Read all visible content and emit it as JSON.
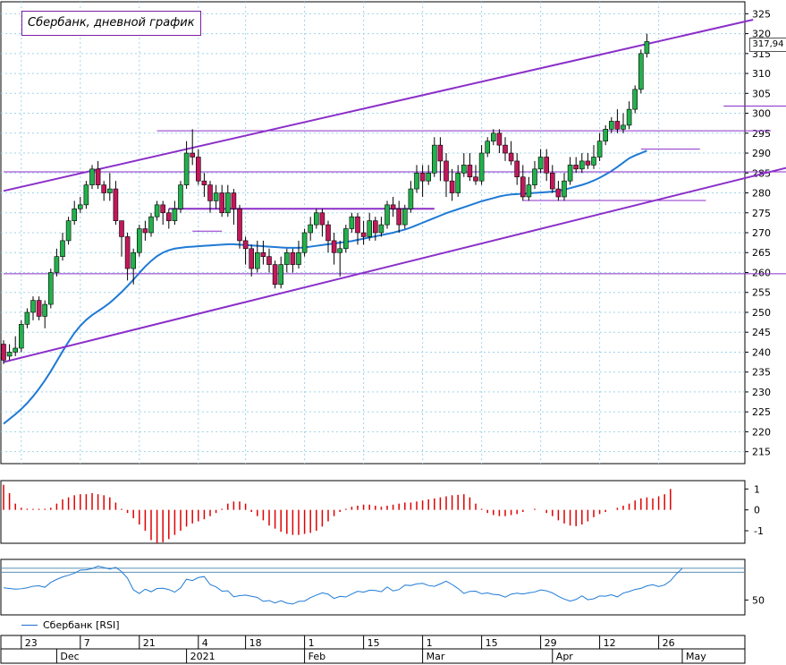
{
  "title": "Сбербанк, дневной график",
  "last_price_label": "317,94",
  "rsi_legend": "Сбербанк [RSI]",
  "colors": {
    "bull_candle": "#22b14c",
    "bear_candle": "#c2185b",
    "trendline": "#8b2fc9",
    "ma": "#1f7ad6",
    "hist": "#e00000",
    "rsi": "#1f7ad6",
    "grid": "#9fd3ea"
  },
  "chart_data": [
    {
      "type": "candlestick",
      "title": "Сбербанк, дневной график",
      "ylim": [
        212,
        328
      ],
      "y_ticks": [
        215,
        220,
        225,
        230,
        235,
        240,
        245,
        250,
        255,
        260,
        265,
        270,
        275,
        280,
        285,
        290,
        295,
        300,
        305,
        310,
        315,
        320,
        325
      ],
      "x_labels": [
        {
          "label": "23",
          "index": 3
        },
        {
          "label": "7",
          "index": 13
        },
        {
          "label": "21",
          "index": 23
        },
        {
          "label": "4",
          "index": 33
        },
        {
          "label": "18",
          "index": 41
        },
        {
          "label": "1",
          "index": 51
        },
        {
          "label": "15",
          "index": 61
        },
        {
          "label": "1",
          "index": 71
        },
        {
          "label": "15",
          "index": 81
        },
        {
          "label": "29",
          "index": 91
        },
        {
          "label": "12",
          "index": 101
        },
        {
          "label": "26",
          "index": 111
        }
      ],
      "month_labels": [
        {
          "label": "Dec",
          "index": 9
        },
        {
          "label": "2021",
          "index": 31
        },
        {
          "label": "Feb",
          "index": 51
        },
        {
          "label": "Mar",
          "index": 71
        },
        {
          "label": "Apr",
          "index": 93
        },
        {
          "label": "May",
          "index": 115
        }
      ],
      "candles": [
        [
          242,
          238,
          243,
          237
        ],
        [
          239,
          240,
          242,
          238
        ],
        [
          240,
          241,
          244,
          239
        ],
        [
          241,
          247,
          248,
          240
        ],
        [
          247,
          250,
          251,
          246
        ],
        [
          250,
          253,
          254,
          248
        ],
        [
          253,
          249,
          254,
          248
        ],
        [
          249,
          252,
          253,
          246
        ],
        [
          252,
          260,
          261,
          251
        ],
        [
          260,
          264,
          266,
          259
        ],
        [
          264,
          268,
          270,
          263
        ],
        [
          268,
          273,
          274,
          267
        ],
        [
          273,
          276,
          278,
          272
        ],
        [
          276,
          277,
          279,
          275
        ],
        [
          277,
          282,
          283,
          276
        ],
        [
          282,
          286,
          287,
          281
        ],
        [
          286,
          282,
          288,
          281
        ],
        [
          282,
          280,
          283,
          278
        ],
        [
          280,
          281,
          285,
          278
        ],
        [
          281,
          273,
          283,
          272
        ],
        [
          273,
          269,
          273,
          264
        ],
        [
          269,
          261,
          270,
          258
        ],
        [
          261,
          265,
          266,
          257
        ],
        [
          265,
          271,
          272,
          264
        ],
        [
          271,
          270,
          273,
          268
        ],
        [
          270,
          274,
          275,
          269
        ],
        [
          274,
          277,
          278,
          273
        ],
        [
          277,
          275,
          278,
          272
        ],
        [
          275,
          273,
          276,
          271
        ],
        [
          273,
          276,
          278,
          272
        ],
        [
          276,
          282,
          283,
          275
        ],
        [
          282,
          290,
          293,
          281
        ],
        [
          290,
          289,
          296,
          287
        ],
        [
          289,
          283,
          291,
          282
        ],
        [
          283,
          282,
          285,
          279
        ],
        [
          282,
          278,
          283,
          275
        ],
        [
          278,
          280,
          282,
          276
        ],
        [
          280,
          275,
          282,
          274
        ],
        [
          275,
          280,
          282,
          274
        ],
        [
          280,
          276,
          281,
          272
        ],
        [
          276,
          268,
          277,
          266
        ],
        [
          268,
          266,
          269,
          262
        ],
        [
          266,
          261,
          267,
          259
        ],
        [
          261,
          265,
          268,
          260
        ],
        [
          265,
          264,
          268,
          262
        ],
        [
          264,
          262,
          266,
          260
        ],
        [
          262,
          257,
          263,
          256
        ],
        [
          257,
          262,
          264,
          256
        ],
        [
          262,
          265,
          266,
          260
        ],
        [
          265,
          262,
          266,
          260
        ],
        [
          262,
          265,
          268,
          261
        ],
        [
          265,
          270,
          271,
          264
        ],
        [
          270,
          272,
          274,
          268
        ],
        [
          272,
          275,
          276,
          271
        ],
        [
          275,
          272,
          276,
          269
        ],
        [
          272,
          268,
          273,
          265
        ],
        [
          268,
          265,
          270,
          262
        ],
        [
          265,
          266,
          268,
          259
        ],
        [
          266,
          271,
          272,
          265
        ],
        [
          271,
          274,
          275,
          270
        ],
        [
          274,
          270,
          275,
          267
        ],
        [
          270,
          269,
          273,
          267
        ],
        [
          269,
          273,
          275,
          268
        ],
        [
          273,
          270,
          274,
          268
        ],
        [
          270,
          272,
          274,
          269
        ],
        [
          272,
          277,
          278,
          271
        ],
        [
          277,
          276,
          279,
          274
        ],
        [
          276,
          272,
          278,
          270
        ],
        [
          272,
          276,
          277,
          271
        ],
        [
          276,
          281,
          283,
          275
        ],
        [
          281,
          285,
          287,
          280
        ],
        [
          285,
          283,
          287,
          279
        ],
        [
          283,
          285,
          287,
          282
        ],
        [
          285,
          292,
          294,
          284
        ],
        [
          292,
          288,
          294,
          283
        ],
        [
          288,
          283,
          290,
          279
        ],
        [
          283,
          280,
          286,
          278
        ],
        [
          280,
          285,
          287,
          279
        ],
        [
          285,
          287,
          290,
          284
        ],
        [
          287,
          284,
          290,
          283
        ],
        [
          284,
          283,
          287,
          282
        ],
        [
          283,
          290,
          292,
          282
        ],
        [
          290,
          293,
          294,
          289
        ],
        [
          293,
          295,
          296,
          292
        ],
        [
          295,
          292,
          296,
          290
        ],
        [
          292,
          290,
          294,
          288
        ],
        [
          290,
          288,
          293,
          287
        ],
        [
          288,
          284,
          290,
          282
        ],
        [
          284,
          279,
          287,
          278
        ],
        [
          279,
          282,
          284,
          278
        ],
        [
          282,
          286,
          288,
          281
        ],
        [
          286,
          289,
          291,
          285
        ],
        [
          289,
          285,
          291,
          283
        ],
        [
          285,
          281,
          287,
          280
        ],
        [
          281,
          279,
          283,
          278
        ],
        [
          279,
          283,
          285,
          278
        ],
        [
          283,
          287,
          289,
          282
        ],
        [
          287,
          286,
          289,
          285
        ],
        [
          286,
          288,
          290,
          285
        ],
        [
          288,
          287,
          290,
          286
        ],
        [
          287,
          289,
          292,
          286
        ],
        [
          289,
          293,
          295,
          288
        ],
        [
          293,
          296,
          297,
          292
        ],
        [
          296,
          298,
          299,
          295
        ],
        [
          298,
          296,
          301,
          295
        ],
        [
          296,
          297,
          300,
          295
        ],
        [
          297,
          301,
          303,
          296
        ],
        [
          301,
          306,
          307,
          300
        ],
        [
          306,
          315,
          316,
          305
        ],
        [
          315,
          318,
          320,
          314
        ]
      ],
      "moving_average": [
        222,
        223.2,
        224.4,
        225.7,
        227.2,
        228.9,
        230.8,
        232.9,
        235.2,
        237.7,
        240.2,
        242.6,
        244.8,
        246.6,
        248.1,
        249.3,
        250.3,
        251.3,
        252.4,
        253.7,
        255.1,
        256.6,
        258.2,
        259.9,
        261.5,
        262.9,
        264.1,
        265,
        265.6,
        266,
        266.2,
        266.4,
        266.5,
        266.6,
        266.7,
        266.8,
        266.9,
        267,
        267.1,
        267.1,
        267,
        266.9,
        266.8,
        266.7,
        266.6,
        266.5,
        266.4,
        266.3,
        266.2,
        266.2,
        266.2,
        266.3,
        266.5,
        266.7,
        266.9,
        267.1,
        267.3,
        267.5,
        267.7,
        267.9,
        268.2,
        268.5,
        268.8,
        269.1,
        269.4,
        269.7,
        270,
        270.4,
        270.8,
        271.3,
        271.9,
        272.5,
        273.1,
        273.7,
        274.3,
        274.9,
        275.4,
        275.9,
        276.4,
        276.9,
        277.4,
        277.9,
        278.3,
        278.7,
        279.1,
        279.4,
        279.6,
        279.7,
        279.8,
        279.9,
        280,
        280.1,
        280.2,
        280.3,
        280.5,
        280.8,
        281.2,
        281.6,
        282,
        282.5,
        283.1,
        283.8,
        284.6,
        285.5,
        286.5,
        287.6,
        288.7,
        289.4,
        290,
        290.6
      ],
      "lines": [
        {
          "name": "channel-top",
          "from": [
            0,
            280.5
          ],
          "to": [
            127,
            323.5
          ],
          "width": 2
        },
        {
          "name": "channel-bottom",
          "from": [
            0,
            237.5
          ],
          "to": [
            140,
            289
          ],
          "width": 2
        },
        {
          "name": "level-260",
          "from": [
            0,
            259.7
          ],
          "to": [
            140,
            259.7
          ],
          "width": 1
        },
        {
          "name": "level-285",
          "from": [
            0,
            285.3
          ],
          "to": [
            140,
            285.3
          ],
          "width": 1
        },
        {
          "name": "level-295",
          "from": [
            26,
            295.6
          ],
          "to": [
            130,
            295.6
          ],
          "width": 1
        },
        {
          "name": "level-276",
          "from": [
            28,
            276
          ],
          "to": [
            73,
            276
          ],
          "width": 2
        },
        {
          "name": "level-270",
          "from": [
            32,
            270.4
          ],
          "to": [
            37,
            270.4
          ],
          "width": 1
        },
        {
          "name": "level-278",
          "from": [
            88,
            278.1
          ],
          "to": [
            119,
            278.1
          ],
          "width": 1
        },
        {
          "name": "level-291",
          "from": [
            108,
            291
          ],
          "to": [
            118,
            291
          ],
          "width": 1
        },
        {
          "name": "level-302",
          "from": [
            122,
            301.8
          ],
          "to": [
            133,
            301.8
          ],
          "width": 1
        }
      ]
    },
    {
      "type": "bar",
      "name": "histogram",
      "ylim": [
        -1.6,
        1.4
      ],
      "y_ticks": [
        1,
        0,
        -1
      ],
      "values": [
        1.2,
        0.8,
        0.3,
        0.1,
        0.05,
        0.05,
        0.05,
        0.05,
        0.1,
        0.3,
        0.5,
        0.6,
        0.7,
        0.75,
        0.75,
        0.8,
        0.75,
        0.7,
        0.6,
        0.35,
        0.05,
        -0.15,
        -0.4,
        -0.7,
        -1.0,
        -1.45,
        -1.6,
        -1.55,
        -1.4,
        -1.2,
        -1.0,
        -0.8,
        -0.65,
        -0.55,
        -0.45,
        -0.3,
        -0.15,
        0.05,
        0.3,
        0.4,
        0.4,
        0.3,
        -0.1,
        -0.3,
        -0.5,
        -0.75,
        -0.9,
        -1.05,
        -1.15,
        -1.2,
        -1.2,
        -1.15,
        -1.1,
        -1.0,
        -0.8,
        -0.55,
        -0.3,
        -0.1,
        0.05,
        0.15,
        0.2,
        0.25,
        0.25,
        0.2,
        0.15,
        0.2,
        0.25,
        0.3,
        0.35,
        0.35,
        0.4,
        0.45,
        0.5,
        0.55,
        0.6,
        0.65,
        0.7,
        0.72,
        0.75,
        0.6,
        0.3,
        0.05,
        -0.15,
        -0.25,
        -0.3,
        -0.3,
        -0.25,
        -0.2,
        -0.1,
        0.0,
        0.05,
        0.0,
        -0.15,
        -0.3,
        -0.5,
        -0.65,
        -0.75,
        -0.78,
        -0.7,
        -0.55,
        -0.35,
        -0.2,
        -0.1,
        0.0,
        0.1,
        0.2,
        0.3,
        0.45,
        0.55,
        0.6,
        0.55,
        0.65,
        0.75,
        1.0
      ]
    },
    {
      "type": "line",
      "name": "Сбербанк [RSI]",
      "ylim": [
        39,
        80
      ],
      "y_ticks": [
        50
      ],
      "guide_levels": [
        73.5,
        70.5
      ],
      "values": [
        59,
        58.5,
        58,
        58.3,
        59,
        60.2,
        60.5,
        59.4,
        63,
        65.2,
        67,
        68.3,
        69.8,
        72.1,
        72.3,
        73.2,
        75,
        74,
        72.8,
        74.1,
        71,
        66.1,
        57.5,
        54.8,
        58,
        56.1,
        58.5,
        58.7,
        57.7,
        55.8,
        59,
        65.4,
        64.3,
        66.6,
        67.3,
        61.4,
        59.7,
        56.5,
        56.8,
        52.3,
        53.2,
        53.6,
        52.7,
        51.9,
        49,
        49.6,
        47.8,
        49.5,
        47.7,
        47,
        49,
        49.2,
        51.8,
        53.6,
        55.3,
        54.3,
        51.1,
        52.7,
        52.2,
        54.4,
        56.4,
        55.8,
        57.2,
        57,
        56.1,
        59.6,
        56.7,
        57.7,
        61,
        60.7,
        61.9,
        62.3,
        60.7,
        60.1,
        61.9,
        63.9,
        61.4,
        58.5,
        54.8,
        56.4,
        56.5,
        54.6,
        55.2,
        54.1,
        53.8,
        52.1,
        54.3,
        55,
        54.4,
        55.3,
        55.9,
        57.4,
        56.8,
        55.2,
        52.7,
        50.7,
        49.2,
        50.4,
        53.1,
        50.2,
        50.9,
        53,
        52.8,
        53.9,
        52.3,
        55.1,
        56.3,
        57.8,
        58.6,
        60.4,
        61.3,
        59.9,
        61.1,
        64.2,
        69.3,
        73.3
      ]
    }
  ]
}
